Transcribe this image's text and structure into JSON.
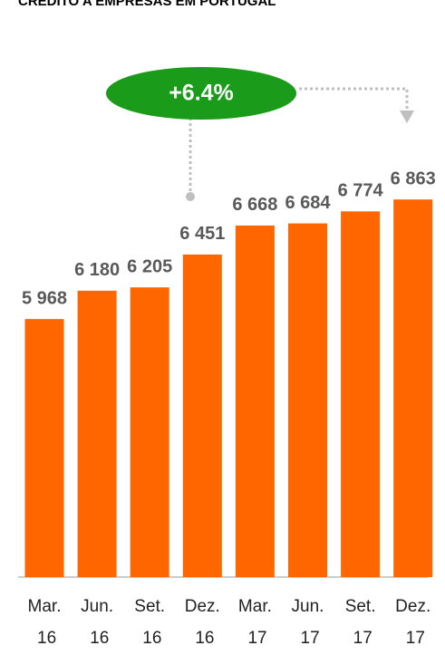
{
  "chart_data": {
    "type": "bar",
    "title": "CRÉDITO A EMPRESAS EM PORTUGAL",
    "categories": [
      "Mar. 16",
      "Jun. 16",
      "Set. 16",
      "Dez. 16",
      "Mar. 17",
      "Jun. 17",
      "Set. 17",
      "Dez. 17"
    ],
    "values": [
      5968,
      6180,
      6205,
      6451,
      6668,
      6684,
      6774,
      6863
    ],
    "value_labels": [
      "5 968",
      "6 180",
      "6 205",
      "6 451",
      "6 668",
      "6 684",
      "6 774",
      "6 863"
    ],
    "color": "#ff6600",
    "ylim": [
      4036,
      7000
    ],
    "annotation": "+6.4%",
    "annotation_color": "#1a9c1a"
  }
}
